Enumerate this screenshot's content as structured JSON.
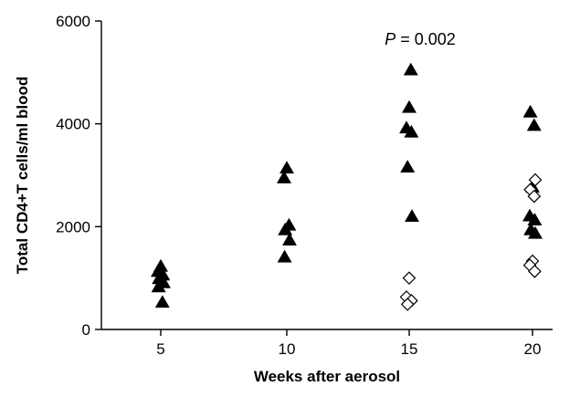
{
  "chart_data": {
    "type": "scatter",
    "title": "",
    "xlabel": "Weeks after aerosol",
    "ylabel": "Total CD4+T cells/ml blood",
    "annotation": {
      "prefix": "P",
      "rest": " = 0.002"
    },
    "x_ticks": [
      "5",
      "10",
      "15",
      "20"
    ],
    "y_ticks": [
      "0",
      "2000",
      "4000",
      "6000"
    ],
    "ylim": [
      0,
      6000
    ],
    "grid": false,
    "legend": "none",
    "series": [
      {
        "marker": "filled-triangle",
        "color": "#000000",
        "points": [
          {
            "x": 5,
            "y": 1220
          },
          {
            "x": 5,
            "y": 1120
          },
          {
            "x": 5,
            "y": 1050
          },
          {
            "x": 5,
            "y": 980
          },
          {
            "x": 5,
            "y": 900
          },
          {
            "x": 5,
            "y": 820
          },
          {
            "x": 5,
            "y": 520
          },
          {
            "x": 10,
            "y": 3130
          },
          {
            "x": 10,
            "y": 2940
          },
          {
            "x": 10,
            "y": 2020
          },
          {
            "x": 10,
            "y": 1930
          },
          {
            "x": 10,
            "y": 1730
          },
          {
            "x": 10,
            "y": 1400
          },
          {
            "x": 15,
            "y": 5040
          },
          {
            "x": 15,
            "y": 4310
          },
          {
            "x": 15,
            "y": 3910
          },
          {
            "x": 15,
            "y": 3830
          },
          {
            "x": 15,
            "y": 3150
          },
          {
            "x": 15,
            "y": 2190
          },
          {
            "x": 20,
            "y": 4220
          },
          {
            "x": 20,
            "y": 3960
          },
          {
            "x": 20,
            "y": 2760
          },
          {
            "x": 20,
            "y": 2200
          },
          {
            "x": 20,
            "y": 2120
          },
          {
            "x": 20,
            "y": 1930
          },
          {
            "x": 20,
            "y": 1860
          }
        ]
      },
      {
        "marker": "open-diamond",
        "color": "#000000",
        "points": [
          {
            "x": 15,
            "y": 1000
          },
          {
            "x": 15,
            "y": 630
          },
          {
            "x": 15,
            "y": 560
          },
          {
            "x": 15,
            "y": 490
          },
          {
            "x": 20,
            "y": 2910
          },
          {
            "x": 20,
            "y": 2720
          },
          {
            "x": 20,
            "y": 2590
          },
          {
            "x": 20,
            "y": 1330
          },
          {
            "x": 20,
            "y": 1250
          },
          {
            "x": 20,
            "y": 1130
          }
        ]
      }
    ]
  }
}
